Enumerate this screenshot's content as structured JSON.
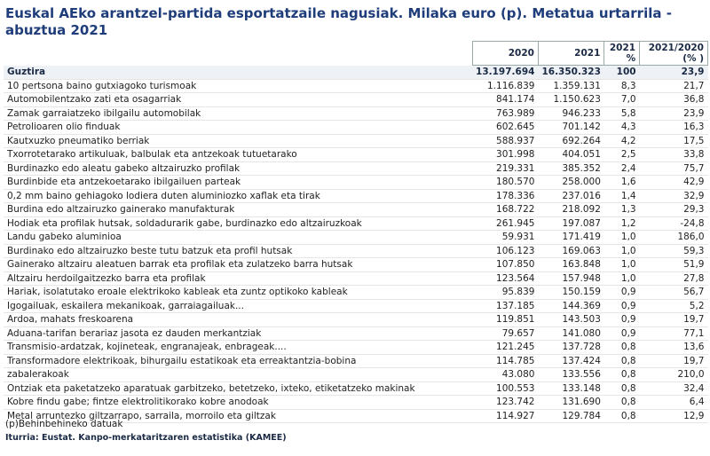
{
  "header": {
    "title": "Euskal AEko arantzel-partida esportatzaile nagusiak. Milaka euro (p). Metatua urtarrila - abuztua 2021"
  },
  "table": {
    "columns": [
      "",
      "2020",
      "2021",
      "2021 %",
      "2021/2020 (% )"
    ],
    "rows": [
      [
        "Guztira",
        "13.197.694",
        "16.350.323",
        "100",
        "23,9"
      ],
      [
        "10 pertsona baino gutxiagoko turismoak",
        "1.116.839",
        "1.359.131",
        "8,3",
        "21,7"
      ],
      [
        "Automobilentzako zati eta osagarriak",
        "841.174",
        "1.150.623",
        "7,0",
        "36,8"
      ],
      [
        "Zamak garraiatzeko ibilgailu automobilak",
        "763.989",
        "946.233",
        "5,8",
        "23,9"
      ],
      [
        "Petrolioaren olio finduak",
        "602.645",
        "701.142",
        "4,3",
        "16,3"
      ],
      [
        "Kautxuzko pneumatiko berriak",
        "588.937",
        "692.264",
        "4,2",
        "17,5"
      ],
      [
        "Txorrotetarako artikuluak, balbulak eta antzekoak tutuetarako",
        "301.998",
        "404.051",
        "2,5",
        "33,8"
      ],
      [
        "Burdinazko edo aleatu gabeko altzairuzko profilak",
        "219.331",
        "385.352",
        "2,4",
        "75,7"
      ],
      [
        "Burdinbide eta antzekoetarako ibilgailuen parteak",
        "180.570",
        "258.000",
        "1,6",
        "42,9"
      ],
      [
        "0,2 mm baino gehiagoko lodiera duten aluminiozko xaflak eta tirak",
        "178.336",
        "237.016",
        "1,4",
        "32,9"
      ],
      [
        "Burdina edo altzairuzko gainerako manufakturak",
        "168.722",
        "218.092",
        "1,3",
        "29,3"
      ],
      [
        "Hodiak eta profilak hutsak, soldadurarik gabe, burdinazko edo altzairuzkoak",
        "261.945",
        "197.087",
        "1,2",
        "-24,8"
      ],
      [
        "Landu gabeko aluminioa",
        "59.931",
        "171.419",
        "1,0",
        "186,0"
      ],
      [
        "Burdinako edo altzairuzko beste tutu batzuk eta profil hutsak",
        "106.123",
        "169.063",
        "1,0",
        "59,3"
      ],
      [
        "Gainerako altzairu aleatuen barrak eta profilak eta zulatzeko barra hutsak",
        "107.850",
        "163.848",
        "1,0",
        "51,9"
      ],
      [
        "Altzairu herdoilgaitzezko barra eta profilak",
        "123.564",
        "157.948",
        "1,0",
        "27,8"
      ],
      [
        "Hariak, isolatutako eroale elektrikoko kableak eta zuntz optikoko kableak",
        "95.839",
        "150.159",
        "0,9",
        "56,7"
      ],
      [
        "Igogailuak, eskailera mekanikoak, garraiagailuak...",
        "137.185",
        "144.369",
        "0,9",
        "5,2"
      ],
      [
        "Ardoa, mahats freskoarena",
        "119.851",
        "143.503",
        "0,9",
        "19,7"
      ],
      [
        "Aduana-tarifan berariaz jasota ez dauden merkantziak",
        "79.657",
        "141.080",
        "0,9",
        "77,1"
      ],
      [
        "Transmisio-ardatzak, kojineteak, engranajeak, enbrageak....",
        "121.245",
        "137.728",
        "0,8",
        "13,6"
      ],
      [
        "Transformadore elektrikoak, bihurgailu estatikoak eta erreaktantzia-bobina",
        "114.785",
        "137.424",
        "0,8",
        "19,7"
      ],
      [
        "zabalerakoak",
        "43.080",
        "133.556",
        "0,8",
        "210,0"
      ],
      [
        "Ontziak eta paketatzeko aparatuak garbitzeko, betetzeko, ixteko, etiketatzeko makinak",
        "100.553",
        "133.148",
        "0,8",
        "32,4"
      ],
      [
        "Kobre findu gabe; fintze elektrolitikorako kobre anodoak",
        "123.742",
        "131.690",
        "0,8",
        "6,4"
      ],
      [
        "Metal arruntezko giltzarrapo, sarraila, morroilo eta giltzak",
        "114.927",
        "129.784",
        "0,8",
        "12,9"
      ]
    ]
  },
  "footnote": "(p)Behinbehineko datuak",
  "source": "Iturria: Eustat. Kanpo-merkataritzaren estatistika (KAMEE)"
}
